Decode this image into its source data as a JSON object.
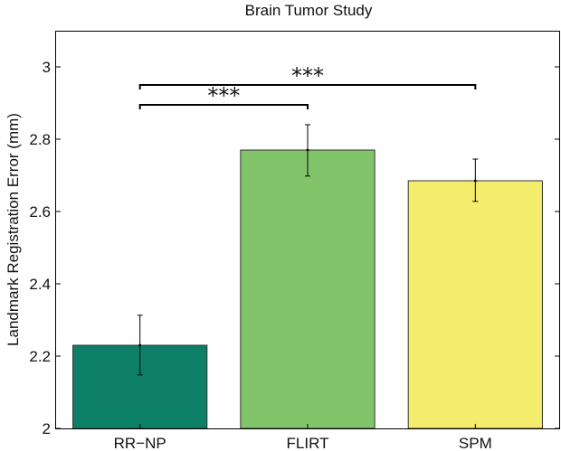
{
  "chart_data": {
    "type": "bar",
    "title": "Brain Tumor Study",
    "xlabel": "",
    "ylabel": "Landmark Registration Error (mm)",
    "categories": [
      "RR−NP",
      "FLIRT",
      "SPM"
    ],
    "values": [
      2.23,
      2.77,
      2.685
    ],
    "error_low": [
      2.148,
      2.698,
      2.628
    ],
    "error_high": [
      2.313,
      2.84,
      2.745
    ],
    "colors": [
      "#0d7f66",
      "#82c46a",
      "#f3ec6c"
    ],
    "ylim": [
      2,
      3.1
    ],
    "yticks": [
      {
        "value": 2,
        "label": "2"
      },
      {
        "value": 2.2,
        "label": "2.2"
      },
      {
        "value": 2.4,
        "label": "2.4"
      },
      {
        "value": 2.6,
        "label": "2.6"
      },
      {
        "value": 2.8,
        "label": "2.8"
      },
      {
        "value": 3,
        "label": "3"
      }
    ],
    "grid": false,
    "significance": [
      {
        "from": 0,
        "to": 1,
        "y": 2.895,
        "label": "***"
      },
      {
        "from": 0,
        "to": 2,
        "y": 2.95,
        "label": "***"
      }
    ]
  }
}
